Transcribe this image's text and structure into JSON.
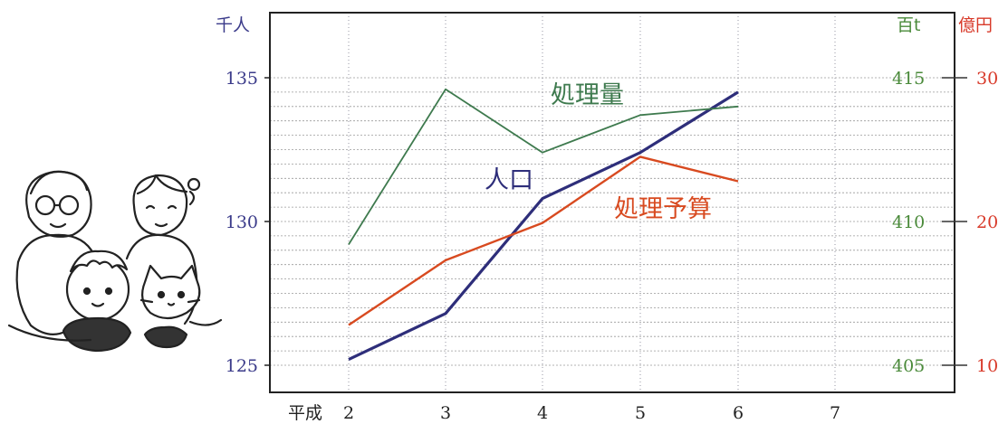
{
  "chart_data": {
    "type": "line",
    "x_axis": {
      "era_label": "平成",
      "categories": [
        "2",
        "3",
        "4",
        "5",
        "6",
        "7"
      ]
    },
    "axes": {
      "left": {
        "unit": "千人",
        "ticks": [
          "125",
          "130",
          "135"
        ],
        "range": [
          124.5,
          136.5
        ]
      },
      "right_inner": {
        "unit": "百t",
        "ticks": [
          "405",
          "410",
          "415"
        ],
        "range": [
          404.5,
          416.5
        ]
      },
      "right_outer": {
        "unit": "億円",
        "ticks": [
          "10",
          "20",
          "30"
        ],
        "range": [
          9,
          33
        ]
      }
    },
    "series": [
      {
        "name": "人口",
        "axis": "left",
        "color": "#2e2e7a",
        "values": [
          125.2,
          126.8,
          130.8,
          132.4,
          134.5
        ]
      },
      {
        "name": "処理量",
        "axis": "right_inner",
        "color": "#3e7a4e",
        "values": [
          409.2,
          414.6,
          412.4,
          413.7,
          414.0
        ]
      },
      {
        "name": "処理予算",
        "axis": "right_outer",
        "color": "#d84a20",
        "values": [
          12.8,
          17.3,
          19.9,
          24.5,
          22.8
        ]
      }
    ],
    "grid": true
  },
  "colors": {
    "left_axis_text": "#3b3b8a",
    "inner_axis_text": "#4a8a3a",
    "outer_axis_text": "#d83a2a",
    "frame": "#222222",
    "grid": "#9a9a9a"
  },
  "illustration": {
    "icon": "family-with-cat-drawing"
  }
}
